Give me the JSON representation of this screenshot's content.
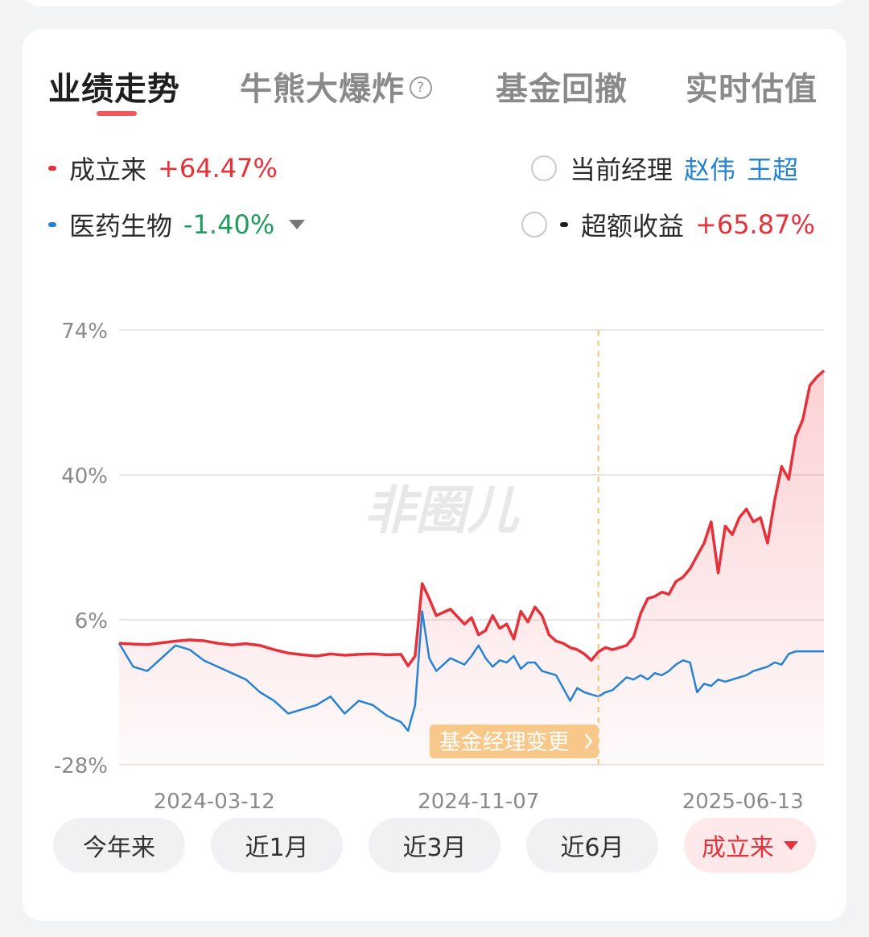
{
  "tabs": [
    {
      "label": "业绩走势",
      "active": true
    },
    {
      "label": "牛熊大爆炸",
      "help_icon": "question-circle-icon"
    },
    {
      "label": "基金回撤"
    },
    {
      "label": "实时估值"
    }
  ],
  "legend": {
    "fund": {
      "label": "成立来",
      "value": "+64.47%",
      "color": "#e6313b"
    },
    "benchmark": {
      "label": "医药生物",
      "value": "-1.40%",
      "color": "#2583d6"
    },
    "manager": {
      "label": "当前经理",
      "names": [
        "赵伟",
        "王超"
      ]
    },
    "excess": {
      "label": "超额收益",
      "value": "+65.87%"
    }
  },
  "watermark": "非圈儿",
  "chart_data": {
    "type": "line",
    "y_ticks": [
      "74%",
      "40%",
      "6%",
      "-28%"
    ],
    "ylim": [
      -28,
      74
    ],
    "x_ticks": [
      "2024-03-12",
      "2024-11-07",
      "2025-06-13"
    ],
    "manager_change_label": "基金经理变更",
    "manager_change_x": 0.68,
    "series": [
      {
        "name": "成立来",
        "color": "#e6313b",
        "x": [
          0,
          0.02,
          0.04,
          0.06,
          0.08,
          0.1,
          0.12,
          0.14,
          0.16,
          0.18,
          0.2,
          0.22,
          0.24,
          0.26,
          0.28,
          0.3,
          0.32,
          0.34,
          0.36,
          0.38,
          0.4,
          0.41,
          0.42,
          0.43,
          0.44,
          0.45,
          0.47,
          0.49,
          0.5,
          0.51,
          0.52,
          0.53,
          0.54,
          0.55,
          0.56,
          0.57,
          0.58,
          0.59,
          0.6,
          0.61,
          0.62,
          0.63,
          0.64,
          0.65,
          0.66,
          0.67,
          0.68,
          0.69,
          0.7,
          0.71,
          0.72,
          0.73,
          0.74,
          0.75,
          0.76,
          0.77,
          0.78,
          0.79,
          0.8,
          0.81,
          0.82,
          0.83,
          0.84,
          0.85,
          0.86,
          0.87,
          0.88,
          0.89,
          0.9,
          0.91,
          0.92,
          0.93,
          0.94,
          0.95,
          0.96,
          0.97,
          0.98,
          0.99,
          1.0
        ],
        "values": [
          0.5,
          0.3,
          0.2,
          0.6,
          1.0,
          1.3,
          1.1,
          0.5,
          0.1,
          0.4,
          0.0,
          -1.0,
          -1.8,
          -2.2,
          -2.5,
          -2.0,
          -2.3,
          -2.1,
          -2.0,
          -2.2,
          -2.1,
          -4.8,
          -2.5,
          14.5,
          11.0,
          7.0,
          8.5,
          5.0,
          6.5,
          2.5,
          3.5,
          7.0,
          4.0,
          5.0,
          1.5,
          8.0,
          5.5,
          9.0,
          7.0,
          2.5,
          1.0,
          0.5,
          -0.5,
          -1.0,
          -2.0,
          -3.5,
          -1.5,
          -0.5,
          -1.0,
          -0.5,
          0.0,
          2.0,
          7.5,
          11.0,
          11.5,
          12.5,
          12.0,
          15.0,
          16.0,
          18.0,
          21.0,
          24.0,
          29.0,
          17.0,
          28.0,
          26.0,
          30.0,
          32.0,
          29.0,
          30.0,
          24.0,
          34.0,
          42.0,
          39.0,
          49.0,
          53.0,
          61.0,
          63.0,
          64.47
        ]
      },
      {
        "name": "医药生物",
        "color": "#2583d6",
        "x": [
          0,
          0.02,
          0.04,
          0.06,
          0.08,
          0.1,
          0.12,
          0.14,
          0.16,
          0.18,
          0.2,
          0.22,
          0.24,
          0.26,
          0.28,
          0.3,
          0.32,
          0.34,
          0.36,
          0.38,
          0.4,
          0.41,
          0.42,
          0.43,
          0.44,
          0.45,
          0.47,
          0.49,
          0.5,
          0.51,
          0.52,
          0.53,
          0.54,
          0.55,
          0.56,
          0.57,
          0.58,
          0.59,
          0.6,
          0.61,
          0.62,
          0.63,
          0.64,
          0.65,
          0.66,
          0.67,
          0.68,
          0.69,
          0.7,
          0.71,
          0.72,
          0.73,
          0.74,
          0.75,
          0.76,
          0.77,
          0.78,
          0.79,
          0.8,
          0.81,
          0.82,
          0.83,
          0.84,
          0.85,
          0.86,
          0.87,
          0.88,
          0.89,
          0.9,
          0.91,
          0.92,
          0.93,
          0.94,
          0.95,
          0.96,
          0.97,
          0.98,
          0.99,
          1.0
        ],
        "values": [
          0.5,
          -5.0,
          -6.0,
          -3.0,
          0.0,
          -1.0,
          -3.5,
          -5.0,
          -6.5,
          -8.0,
          -11.0,
          -13.0,
          -16.0,
          -15.0,
          -14.0,
          -12.0,
          -16.0,
          -13.0,
          -14.0,
          -16.5,
          -18.0,
          -20.0,
          -14.0,
          8.0,
          -3.0,
          -6.0,
          -3.0,
          -4.5,
          -2.5,
          0.0,
          -3.0,
          -5.0,
          -3.5,
          -4.0,
          -2.5,
          -5.5,
          -4.0,
          -4.0,
          -6.0,
          -6.5,
          -7.0,
          -10.0,
          -13.0,
          -10.0,
          -11.0,
          -11.5,
          -12.0,
          -11.0,
          -10.5,
          -9.0,
          -7.5,
          -8.0,
          -7.0,
          -8.0,
          -6.5,
          -7.0,
          -6.0,
          -4.5,
          -3.5,
          -4.0,
          -11.0,
          -9.0,
          -9.5,
          -8.0,
          -8.5,
          -8.0,
          -7.5,
          -7.0,
          -6.0,
          -5.5,
          -5.0,
          -4.0,
          -4.5,
          -2.0,
          -1.4,
          -1.4,
          -1.4,
          -1.4,
          -1.4
        ]
      }
    ]
  },
  "range_buttons": [
    {
      "label": "今年来"
    },
    {
      "label": "近1月"
    },
    {
      "label": "近3月"
    },
    {
      "label": "近6月"
    },
    {
      "label": "成立来",
      "active": true
    }
  ]
}
